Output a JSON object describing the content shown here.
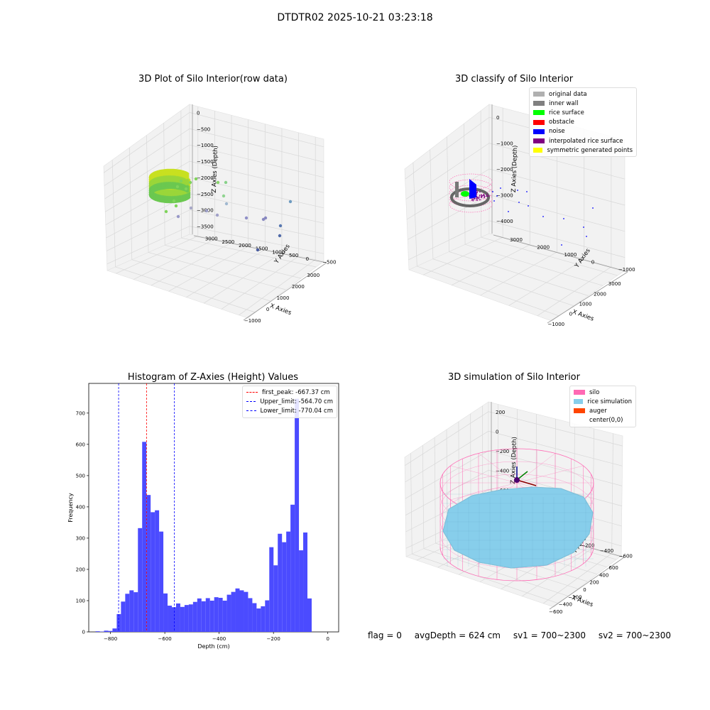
{
  "figure": {
    "title": "DTDTR02 2025-10-21 03:23:18",
    "status": {
      "flag": "flag = 0",
      "avg_depth": "avgDepth = 624 cm",
      "sv1": "sv1 = 700~2300",
      "sv2": "sv2 = 700~2300"
    }
  },
  "panels": {
    "raw": {
      "title": "3D Plot of Silo Interior(row data)",
      "xlabel": "X Axies",
      "ylabel": "Y Axies",
      "zlabel": "Z Axies (Depth)",
      "xticks": [
        "−1000",
        "0",
        "1000",
        "2000",
        "3000"
      ],
      "yticks": [
        "−500",
        "0",
        "500",
        "1000",
        "1500",
        "2000",
        "2500",
        "3000"
      ],
      "zticks": [
        "0",
        "−500",
        "−1000",
        "−1500",
        "−2000",
        "−2500",
        "−3000",
        "−3500"
      ]
    },
    "classify": {
      "title": "3D classify of Silo Interior",
      "xlabel": "X Axies",
      "ylabel": "Y Axies",
      "zlabel": "Z Axies (Depth)",
      "xticks": [
        "−1000",
        "0",
        "1000",
        "2000",
        "3000"
      ],
      "yticks": [
        "−1000",
        "0",
        "1000",
        "2000",
        "3000"
      ],
      "zticks": [
        "0",
        "−1000",
        "−2000",
        "−3000",
        "−4000"
      ],
      "legend": [
        {
          "label": "original data",
          "color": "#b0b0b0"
        },
        {
          "label": "inner wall",
          "color": "#808080"
        },
        {
          "label": "rice surface",
          "color": "#00ff00"
        },
        {
          "label": "obstacle",
          "color": "#ff0000"
        },
        {
          "label": "noise",
          "color": "#0000ff"
        },
        {
          "label": "interpolated rice surface",
          "color": "#800080"
        },
        {
          "label": "symmetric generated points",
          "color": "#ffff00"
        }
      ]
    },
    "histogram": {
      "title": "Histogram of Z-Axies (Height) Values",
      "xlabel": "Depth (cm)",
      "ylabel": "Frequency",
      "bar_color": "#4b4bff",
      "legend": [
        {
          "label": "first_peak: -667.37 cm",
          "color": "#ff0000"
        },
        {
          "label": "Upper_limit: -564.70 cm",
          "color": "#0000ff"
        },
        {
          "label": "Lower_limit: -770.04 cm",
          "color": "#0000ff"
        }
      ]
    },
    "simulation": {
      "title": "3D simulation of Silo Interior",
      "xlabel": "X Axies",
      "ylabel": "Y Axies",
      "zlabel": "Z Axies (Depth)",
      "xticks": [
        "−600",
        "−400",
        "−200",
        "0",
        "200",
        "400",
        "600"
      ],
      "yticks": [
        "−600",
        "−400",
        "−200",
        "0",
        "200",
        "400",
        "600"
      ],
      "zticks": [
        "200",
        "0",
        "−200",
        "−400",
        "−600",
        "−800"
      ],
      "legend": [
        {
          "label": "silo",
          "color": "#ff69b4"
        },
        {
          "label": "rice simulation",
          "color": "#87ceeb"
        },
        {
          "label": "auger",
          "color": "#ff4500"
        },
        {
          "label": "center(0,0)",
          "color": ""
        }
      ],
      "silo_color": "#ff69b4",
      "rice_color": "#87ceeb"
    }
  },
  "chart_data": {
    "type": "bar",
    "xlabel": "Depth (cm)",
    "ylabel": "Frequency",
    "xlim": [
      -880,
      40
    ],
    "ylim": [
      0,
      795
    ],
    "xticks": [
      -800,
      -600,
      -400,
      -200,
      0
    ],
    "yticks": [
      0,
      100,
      200,
      300,
      400,
      500,
      600,
      700
    ],
    "bin_width": 15.6,
    "bin_starts": [
      -855,
      -839.4,
      -823.8,
      -808.2,
      -792.6,
      -777,
      -761.4,
      -745.8,
      -730.2,
      -714.6,
      -699,
      -683.4,
      -667.8,
      -652.2,
      -636.6,
      -621,
      -605.4,
      -589.8,
      -574.2,
      -558.6,
      -543,
      -527.4,
      -511.8,
      -496.2,
      -480.6,
      -465,
      -449.4,
      -433.8,
      -418.2,
      -402.6,
      -387,
      -371.4,
      -355.8,
      -340.2,
      -324.6,
      -309,
      -293.4,
      -277.8,
      -262.2,
      -246.6,
      -231,
      -215.4,
      -199.8,
      -184.2,
      -168.6,
      -153,
      -137.4,
      -121.8,
      -106.2,
      -90.6,
      -75,
      -59.4,
      -43.8,
      -28.2,
      -12.6
    ],
    "values": [
      2,
      1,
      4,
      3,
      11,
      57,
      97,
      122,
      133,
      127,
      332,
      608,
      438,
      383,
      389,
      321,
      123,
      84,
      79,
      91,
      80,
      86,
      88,
      96,
      107,
      98,
      108,
      100,
      111,
      109,
      100,
      119,
      128,
      139,
      133,
      128,
      108,
      92,
      75,
      82,
      101,
      271,
      213,
      314,
      287,
      321,
      407,
      746,
      261,
      318,
      107,
      0,
      0,
      0,
      0
    ],
    "vlines": [
      {
        "label": "first_peak: -667.37 cm",
        "x": -667.37,
        "color": "#ff0000"
      },
      {
        "label": "Upper_limit: -564.70 cm",
        "x": -564.7,
        "color": "#0000ff"
      },
      {
        "label": "Lower_limit: -770.04 cm",
        "x": -770.04,
        "color": "#0000ff"
      }
    ]
  }
}
